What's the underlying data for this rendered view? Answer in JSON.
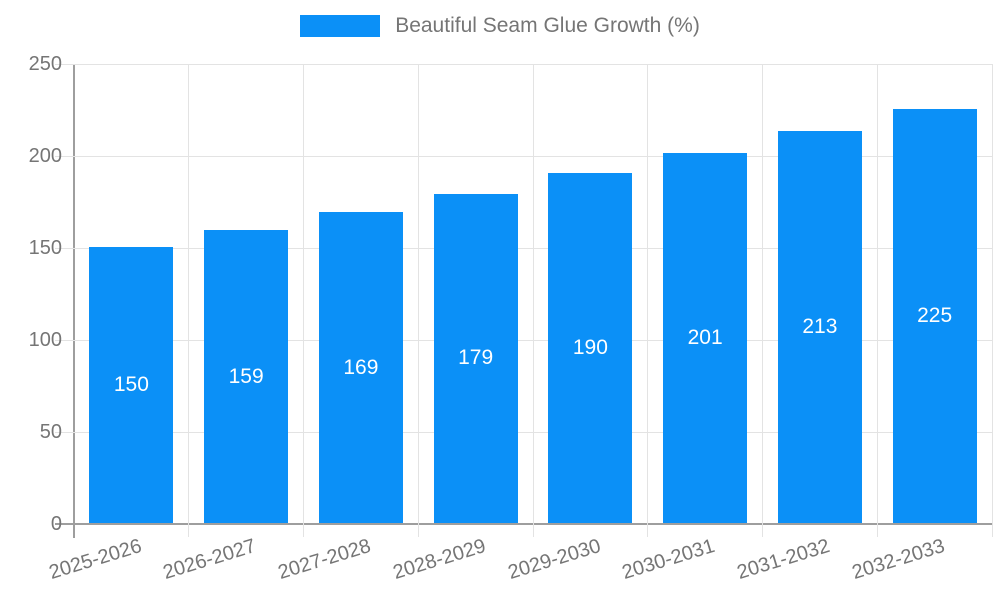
{
  "chart_data": {
    "type": "bar",
    "title": "Beautiful Seam Glue Growth (%)",
    "categories": [
      "2025-2026",
      "2026-2027",
      "2027-2028",
      "2028-2029",
      "2029-2030",
      "2030-2031",
      "2031-2032",
      "2032-2033"
    ],
    "values": [
      150,
      159,
      169,
      179,
      190,
      201,
      213,
      225
    ],
    "series": [
      {
        "name": "Beautiful Seam Glue Growth (%)",
        "values": [
          150,
          159,
          169,
          179,
          190,
          201,
          213,
          225
        ]
      }
    ],
    "xlabel": "",
    "ylabel": "",
    "ylim": [
      0,
      250
    ],
    "yticks": [
      0,
      50,
      100,
      150,
      200,
      250
    ],
    "grid": true,
    "legend_position": "top",
    "bar_color": "#0b90f7",
    "bar_label_color": "#ffffff",
    "axis_text_color": "#757575",
    "gridline_color": "#e3e3e3",
    "axis_line_color": "#9e9e9e"
  },
  "legend": {
    "label": "Beautiful Seam Glue Growth (%)",
    "swatch_color": "#0b90f7"
  }
}
